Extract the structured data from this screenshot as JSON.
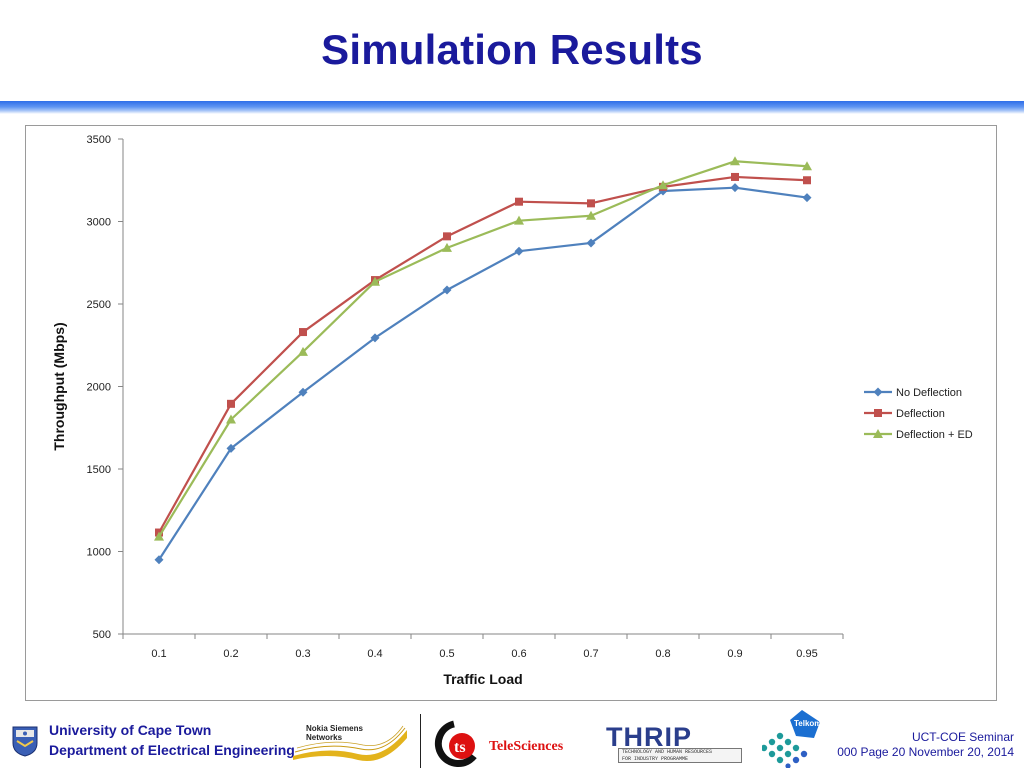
{
  "slide": {
    "title": "Simulation Results"
  },
  "chart_data": {
    "type": "line",
    "title": "",
    "xlabel": "Traffic Load",
    "ylabel": "Throughput (Mbps)",
    "categories": [
      "0.1",
      "0.2",
      "0.3",
      "0.4",
      "0.5",
      "0.6",
      "0.7",
      "0.8",
      "0.9",
      "0.95"
    ],
    "ylim": [
      500,
      3500
    ],
    "yticks": [
      500,
      1000,
      1500,
      2000,
      2500,
      3000,
      3500
    ],
    "grid": false,
    "legend_position": "right",
    "series": [
      {
        "name": "No Deflection",
        "color": "#4f81bd",
        "marker": "diamond",
        "values": [
          950,
          1625,
          1965,
          2295,
          2585,
          2820,
          2870,
          3185,
          3205,
          3145
        ]
      },
      {
        "name": "Deflection",
        "color": "#c0504d",
        "marker": "square",
        "values": [
          1115,
          1895,
          2330,
          2645,
          2910,
          3120,
          3110,
          3210,
          3270,
          3250
        ]
      },
      {
        "name": "Deflection + ED",
        "color": "#9bbb59",
        "marker": "triangle",
        "values": [
          1090,
          1800,
          2210,
          2635,
          2840,
          3005,
          3035,
          3220,
          3365,
          3335
        ]
      }
    ]
  },
  "footer": {
    "uct_line1": "University of Cape Town",
    "uct_line2": "Department of Electrical Engineering",
    "nsn_line1": "Nokia Siemens",
    "nsn_line2": "Networks",
    "teleSciences": "TeleSciences",
    "thrip": "THRIP",
    "thrip_sub1": "TECHNOLOGY AND HUMAN RESOURCES",
    "thrip_sub2": "FOR INDUSTRY PROGRAMME",
    "telkom": "Telkom",
    "seminar_line1": "UCT-COE Seminar",
    "seminar_line2": "000 Page 20 November 20, 2014"
  },
  "colors": {
    "title": "#1a1a9c",
    "title_rule": "#2e6ee8",
    "footer_text": "#1a1a9c"
  },
  "icons": {
    "uct_crest": "university-crest-icon",
    "nsn_logo": "nokia-siemens-waves-icon",
    "ts_logo": "telesciences-ts-icon",
    "telkom_logo": "telkom-dots-icon"
  }
}
